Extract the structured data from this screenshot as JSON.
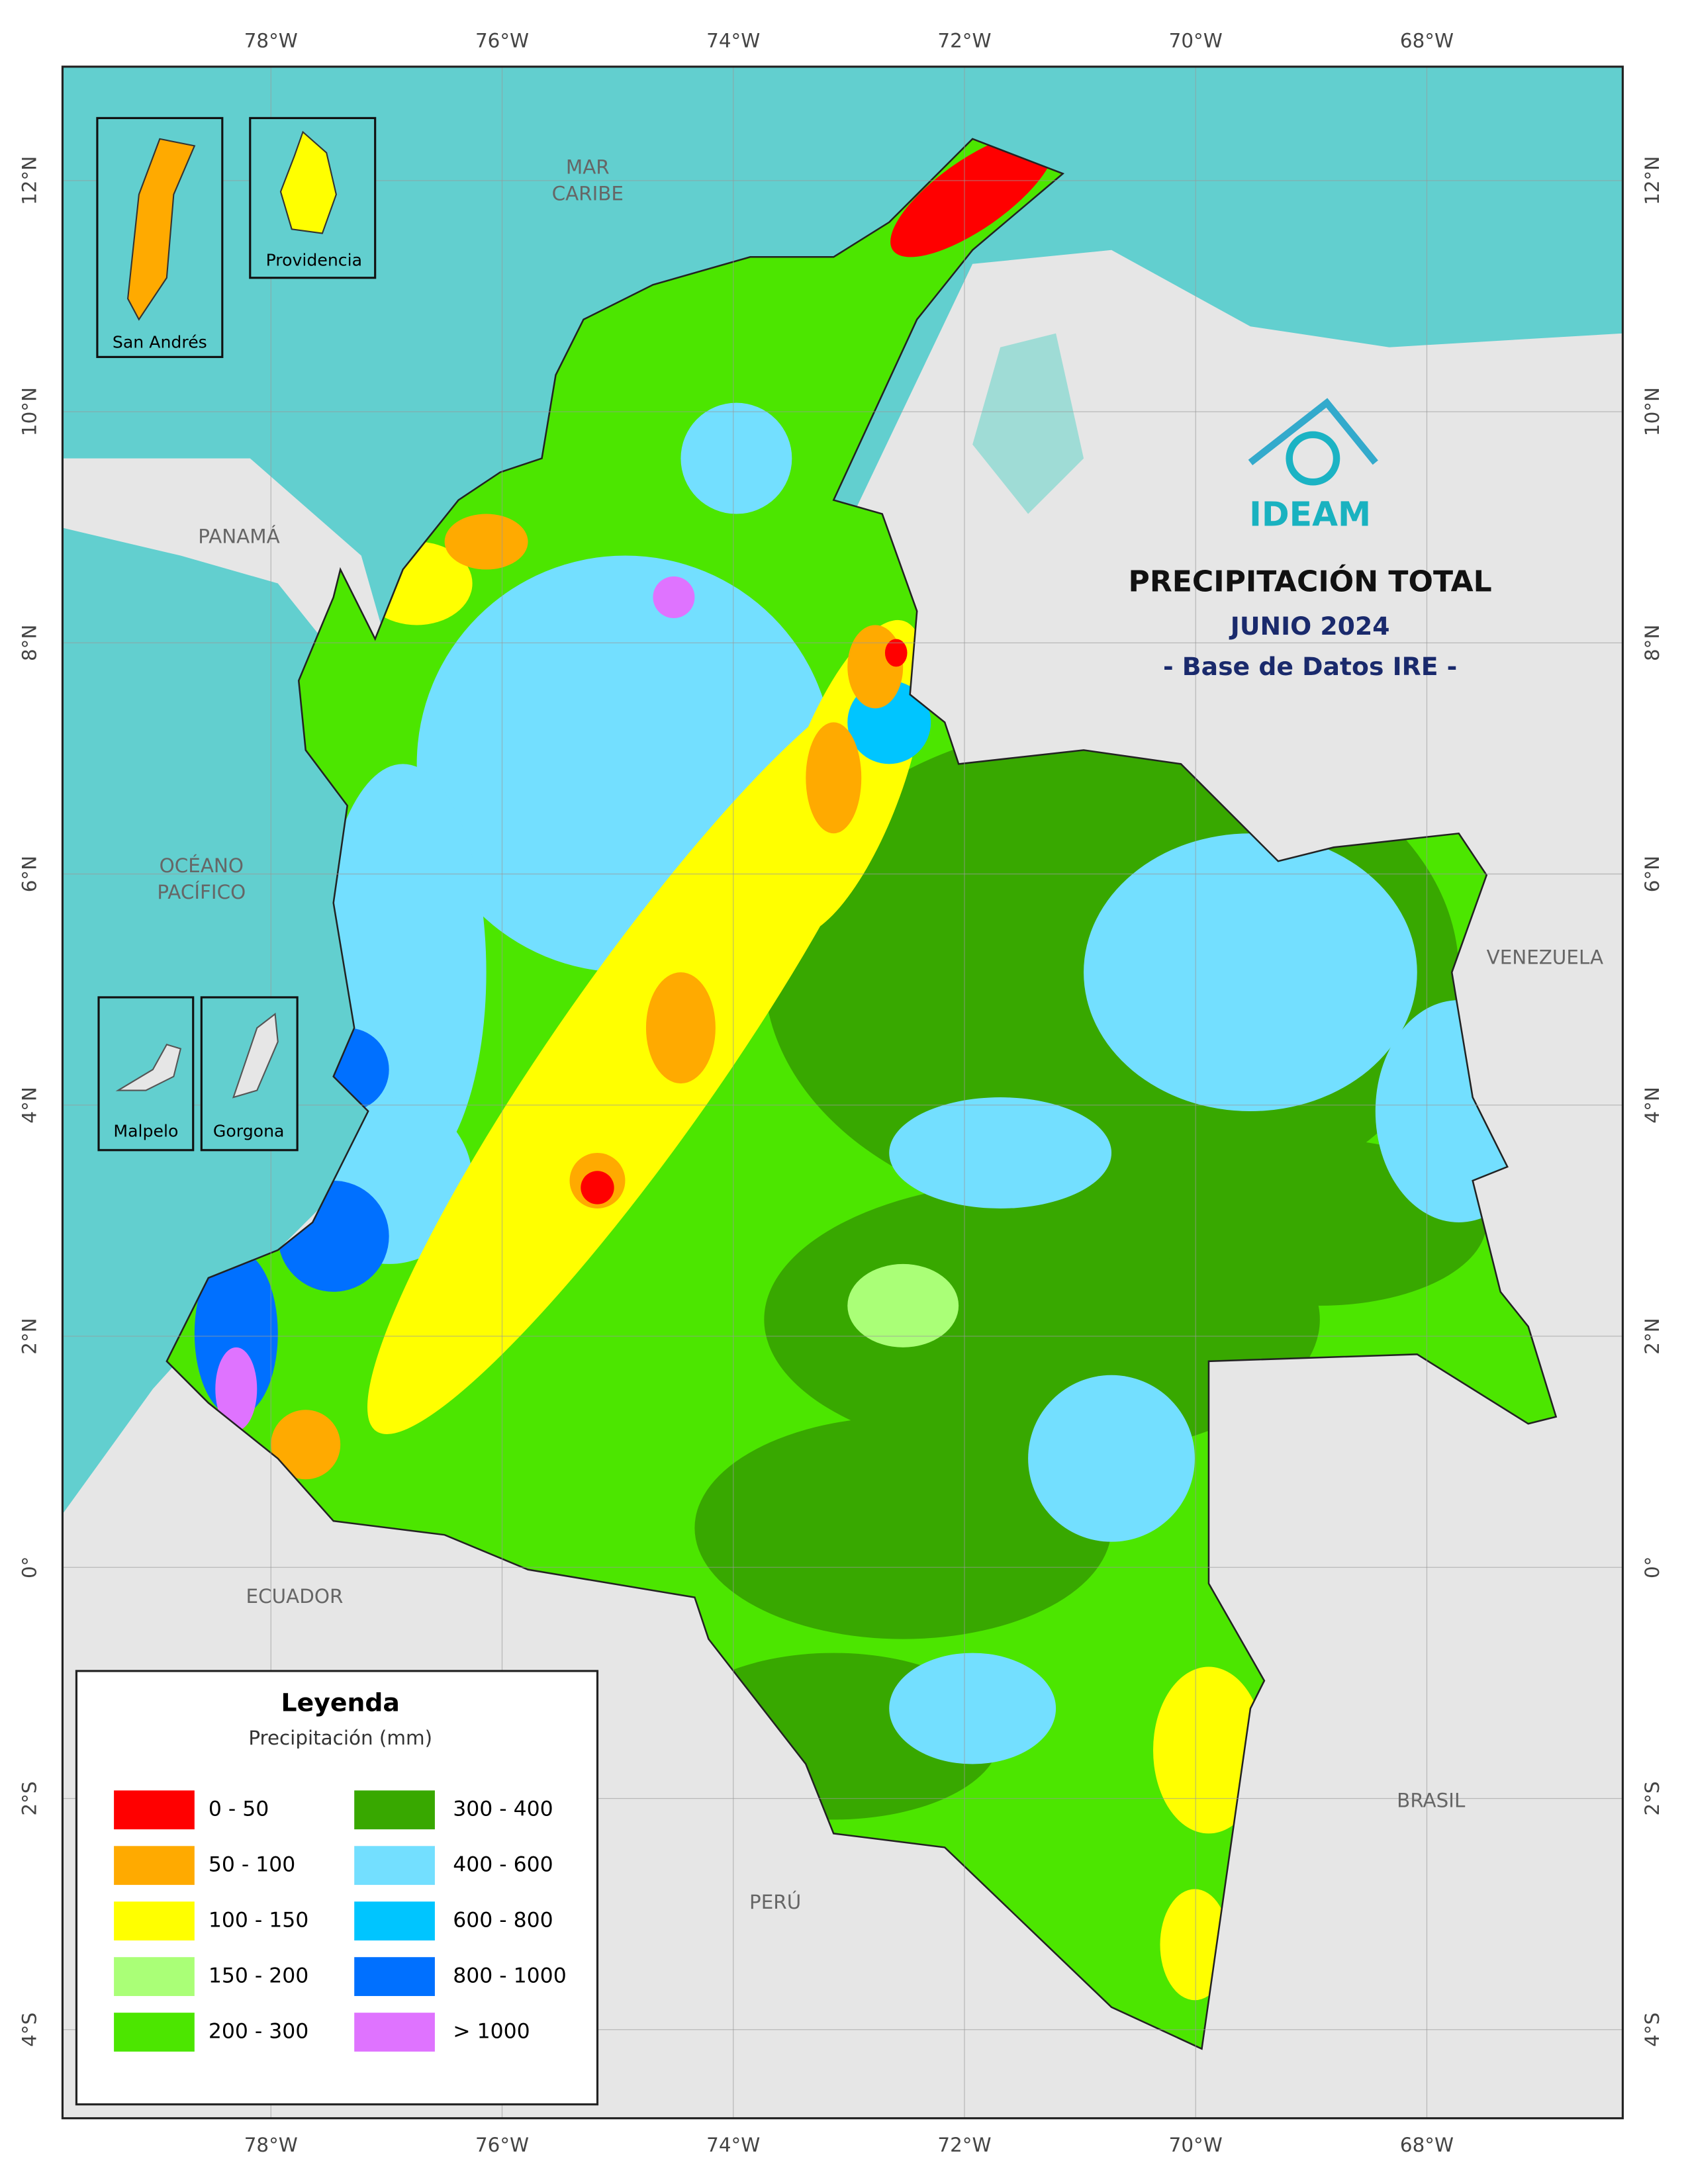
{
  "header": {
    "title": "PRECIPITACIÓN TOTAL",
    "period": "JUNIO 2024",
    "source": "- Base de Datos IRE -",
    "logo": "IDEAM"
  },
  "map": {
    "longitudes": [
      "78°W",
      "76°W",
      "74°W",
      "72°W",
      "70°W",
      "68°W"
    ],
    "latitudes": [
      "12°N",
      "10°N",
      "8°N",
      "6°N",
      "4°N",
      "2°N",
      "0°",
      "2°S",
      "4°S"
    ],
    "places": [
      {
        "lines": [
          "MAR",
          "CARIBE"
        ]
      },
      {
        "lines": [
          "OCÉANO",
          "PACÍFICO"
        ]
      },
      {
        "lines": [
          "PANAMÁ"
        ]
      },
      {
        "lines": [
          "VENEZUELA"
        ]
      },
      {
        "lines": [
          "ECUADOR"
        ]
      },
      {
        "lines": [
          "BRASIL"
        ]
      },
      {
        "lines": [
          "PERÚ"
        ]
      }
    ],
    "insets": [
      "San Andrés",
      "Providencia",
      "Malpelo",
      "Gorgona"
    ]
  },
  "legend": {
    "title": "Leyenda",
    "subtitle": "Precipitación (mm)",
    "items": [
      {
        "label": "0 - 50",
        "color": "#ff0000"
      },
      {
        "label": "50 - 100",
        "color": "#ffaa00"
      },
      {
        "label": "100 - 150",
        "color": "#ffff00"
      },
      {
        "label": "150 - 200",
        "color": "#aaff77"
      },
      {
        "label": "200 - 300",
        "color": "#4ce600"
      },
      {
        "label": "300 - 400",
        "color": "#38a800"
      },
      {
        "label": "400 - 600",
        "color": "#73dfff"
      },
      {
        "label": "600 - 800",
        "color": "#00c5ff"
      },
      {
        "label": "800 - 1000",
        "color": "#0070ff"
      },
      {
        "label": "> 1000",
        "color": "#df73ff"
      }
    ]
  }
}
